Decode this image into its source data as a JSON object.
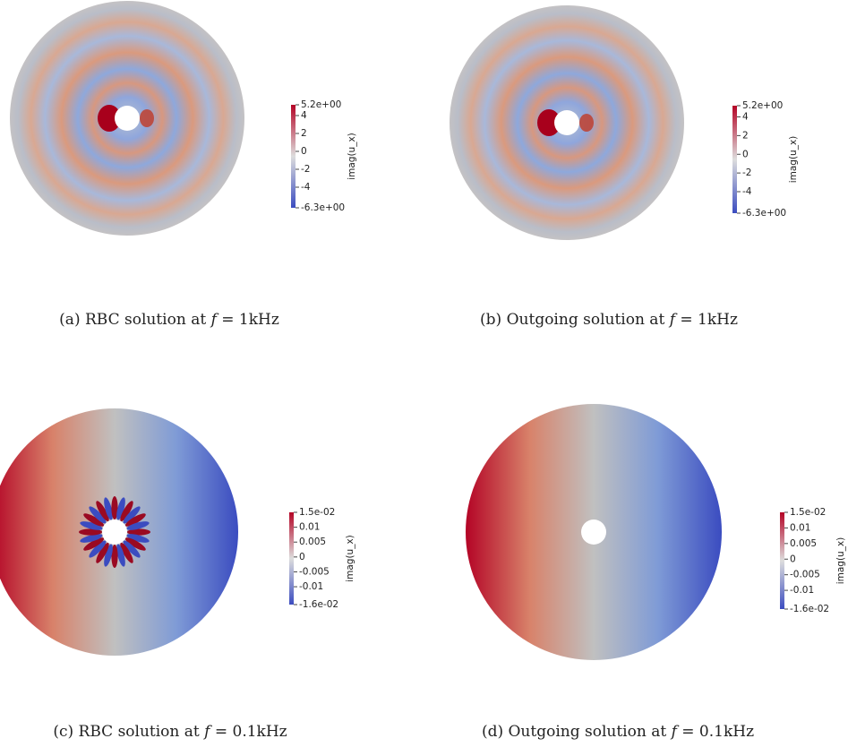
{
  "panels": [
    {
      "caption": {
        "label": "(a) RBC solution at",
        "symbol": "f",
        "suffix": "= 1kHz"
      },
      "colorbar": {
        "title": "imag(u_x)",
        "ticks": [
          {
            "value": 5.2,
            "label": "5.2e+00"
          },
          4,
          2,
          0,
          -2,
          -4,
          {
            "value": -6.3,
            "label": "-6.3e+00"
          }
        ]
      }
    },
    {
      "caption": {
        "label": "(b) Outgoing solution at",
        "symbol": "f",
        "suffix": "= 1kHz"
      },
      "colorbar": {
        "title": "imag(u_x)",
        "ticks": [
          {
            "value": 5.2,
            "label": "5.2e+00"
          },
          4,
          2,
          0,
          -2,
          -4,
          {
            "value": -6.3,
            "label": "-6.3e+00"
          }
        ]
      }
    },
    {
      "caption": {
        "label": "(c) RBC solution at",
        "symbol": "f",
        "suffix": "= 0.1kHz"
      },
      "colorbar": {
        "title": "imag(u_x)",
        "ticks": [
          {
            "value": 0.015,
            "label": "1.5e-02"
          },
          0.01,
          0.005,
          0,
          -0.005,
          -0.01,
          {
            "value": -0.016,
            "label": "-1.6e-02"
          }
        ]
      }
    },
    {
      "caption": {
        "label": "(d) Outgoing solution at",
        "symbol": "f",
        "suffix": "= 0.1kHz"
      },
      "colorbar": {
        "title": "imag(u_x)",
        "ticks": [
          {
            "value": 0.015,
            "label": "1.5e-02"
          },
          0.01,
          0.005,
          0,
          -0.005,
          -0.01,
          {
            "value": -0.016,
            "label": "-1.6e-02"
          }
        ]
      }
    }
  ]
}
